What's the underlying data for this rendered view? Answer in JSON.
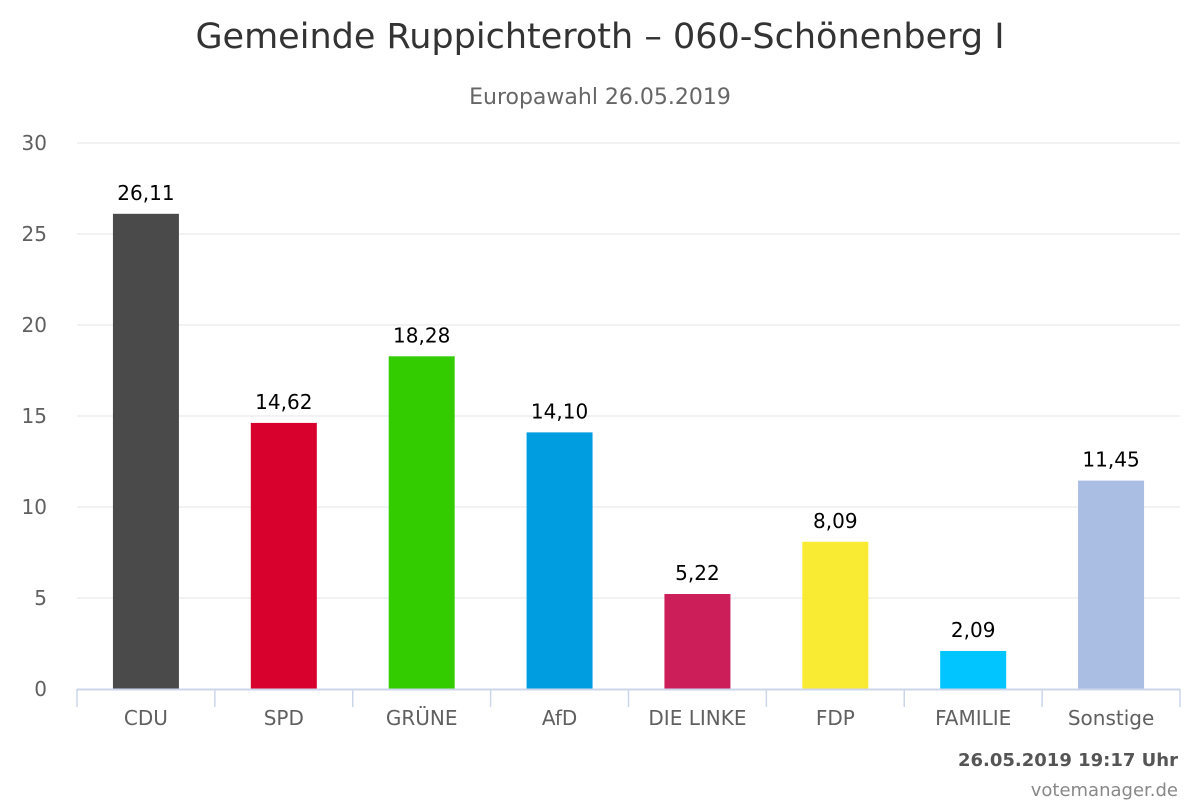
{
  "chart_data": {
    "type": "bar",
    "title": "Gemeinde Ruppichteroth – 060-Schönenberg I",
    "subtitle": "Europawahl 26.05.2019",
    "xlabel": "",
    "ylabel": "",
    "ylim": [
      0,
      30
    ],
    "yticks": [
      0,
      5,
      10,
      15,
      20,
      25,
      30
    ],
    "grid": true,
    "legend": "none",
    "categories": [
      "CDU",
      "SPD",
      "GRÜNE",
      "AfD",
      "DIE LINKE",
      "FDP",
      "FAMILIE",
      "Sonstige"
    ],
    "values": [
      26.11,
      14.62,
      18.28,
      14.1,
      5.22,
      8.09,
      2.09,
      11.45
    ],
    "data_labels": [
      "26,11",
      "14,62",
      "18,28",
      "14,10",
      "5,22",
      "8,09",
      "2,09",
      "11,45"
    ],
    "colors": [
      "#4a4a4a",
      "#d8002c",
      "#33cc00",
      "#009ee0",
      "#cc1f5a",
      "#f9ea34",
      "#00c5ff",
      "#aabde3"
    ]
  },
  "footer": {
    "timestamp": "26.05.2019 19:17 Uhr",
    "credit": "votemanager.de"
  }
}
